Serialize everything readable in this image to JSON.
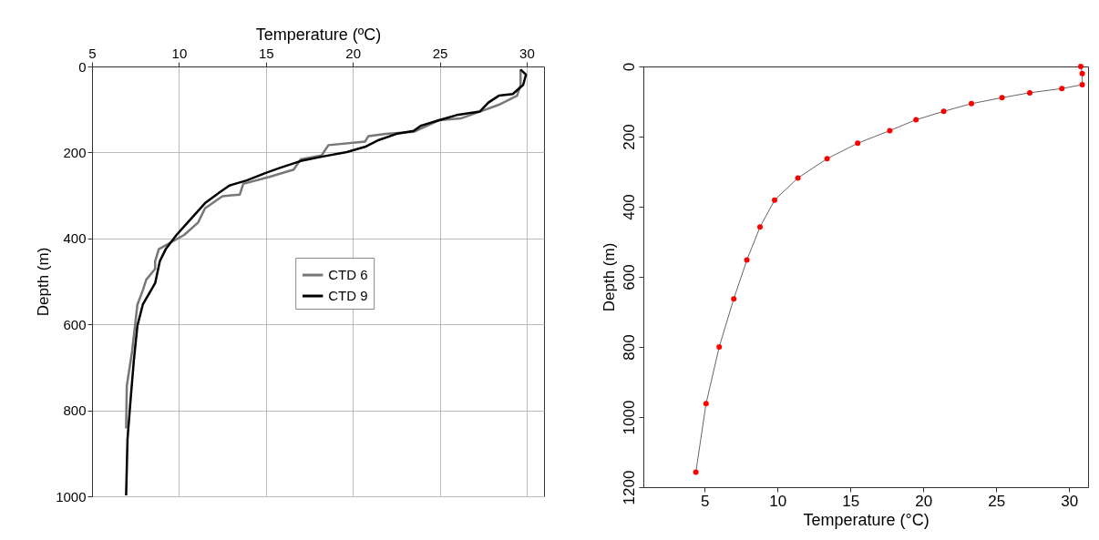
{
  "chart_data": [
    {
      "type": "line",
      "xlabel": "Temperature (ºC)",
      "ylabel": "Depth (m)",
      "xlim": [
        5,
        31
      ],
      "xticks": [
        5,
        10,
        15,
        20,
        25,
        30
      ],
      "ylim": [
        1000,
        0
      ],
      "yticks": [
        0,
        200,
        400,
        600,
        800,
        1000
      ],
      "grid": true,
      "legend": "right",
      "series": [
        {
          "name": "CTD 6",
          "color": "#777777",
          "x": [
            29.65,
            29.65,
            29.45,
            28.4,
            27.6,
            26.2,
            24.96,
            23.5,
            21.9,
            20.9,
            20.7,
            18.6,
            18.2,
            17.0,
            16.6,
            15.2,
            13.7,
            13.5,
            12.5,
            11.5,
            11.1,
            10.3,
            8.84,
            8.63,
            8.63,
            8.12,
            7.92,
            7.61,
            7.31,
            7.0,
            6.96
          ],
          "values": [
            7,
            43,
            68,
            89,
            101,
            121,
            125,
            152,
            157,
            162,
            175,
            183,
            207,
            216,
            240,
            257,
            273,
            298,
            302,
            330,
            363,
            392,
            425,
            453,
            471,
            496,
            521,
            554,
            661,
            743,
            842
          ]
        },
        {
          "name": "CTD 9",
          "color": "#000000",
          "x": [
            29.65,
            29.96,
            29.8,
            29.2,
            28.4,
            27.8,
            27.3,
            25.98,
            24.96,
            23.9,
            23.5,
            22.5,
            21.5,
            20.7,
            19.65,
            18.2,
            17.0,
            15.8,
            14.96,
            13.9,
            12.9,
            12.3,
            11.5,
            10.5,
            9.86,
            9.24,
            8.9,
            8.63,
            7.92,
            7.61,
            7.4,
            7.2,
            7.04,
            7.0,
            6.96
          ],
          "values": [
            7,
            19,
            43,
            64,
            68,
            84,
            105,
            113,
            125,
            138,
            150,
            157,
            171,
            187,
            199,
            210,
            220,
            236,
            248,
            265,
            277,
            294,
            318,
            363,
            392,
            425,
            453,
            504,
            554,
            603,
            686,
            784,
            867,
            933,
            998
          ]
        }
      ]
    },
    {
      "type": "line",
      "xlabel": "Temperature (°C)",
      "ylabel": "Depth (m)",
      "xlim": [
        0.8,
        31.3
      ],
      "xticks": [
        5,
        10,
        15,
        20,
        25,
        30
      ],
      "ylim": [
        1200,
        0
      ],
      "yticks": [
        0,
        200,
        400,
        600,
        800,
        1000,
        1200
      ],
      "series": [
        {
          "color": "#666666",
          "x": [
            30.8,
            30.9,
            30.9,
            29.5,
            27.3,
            25.4,
            23.3,
            21.4,
            19.5,
            17.7,
            15.5,
            13.4,
            11.4,
            9.8,
            8.8,
            7.9,
            7.0,
            6.0,
            5.1,
            4.4
          ],
          "values": [
            0,
            20,
            52,
            63,
            75,
            89,
            106,
            128,
            152,
            183,
            219,
            263,
            318,
            381,
            458,
            552,
            663,
            800,
            962,
            1157
          ]
        },
        {
          "type": "scatter",
          "color": "#ff0000",
          "x": [
            30.8,
            30.9,
            30.9,
            29.5,
            27.3,
            25.4,
            23.3,
            21.4,
            19.5,
            17.7,
            15.5,
            13.4,
            11.4,
            9.8,
            8.8,
            7.9,
            7.0,
            6.0,
            5.1,
            4.4
          ],
          "values": [
            0,
            20,
            52,
            63,
            75,
            89,
            106,
            128,
            152,
            183,
            219,
            263,
            318,
            381,
            458,
            552,
            663,
            800,
            962,
            1157
          ]
        }
      ]
    }
  ]
}
